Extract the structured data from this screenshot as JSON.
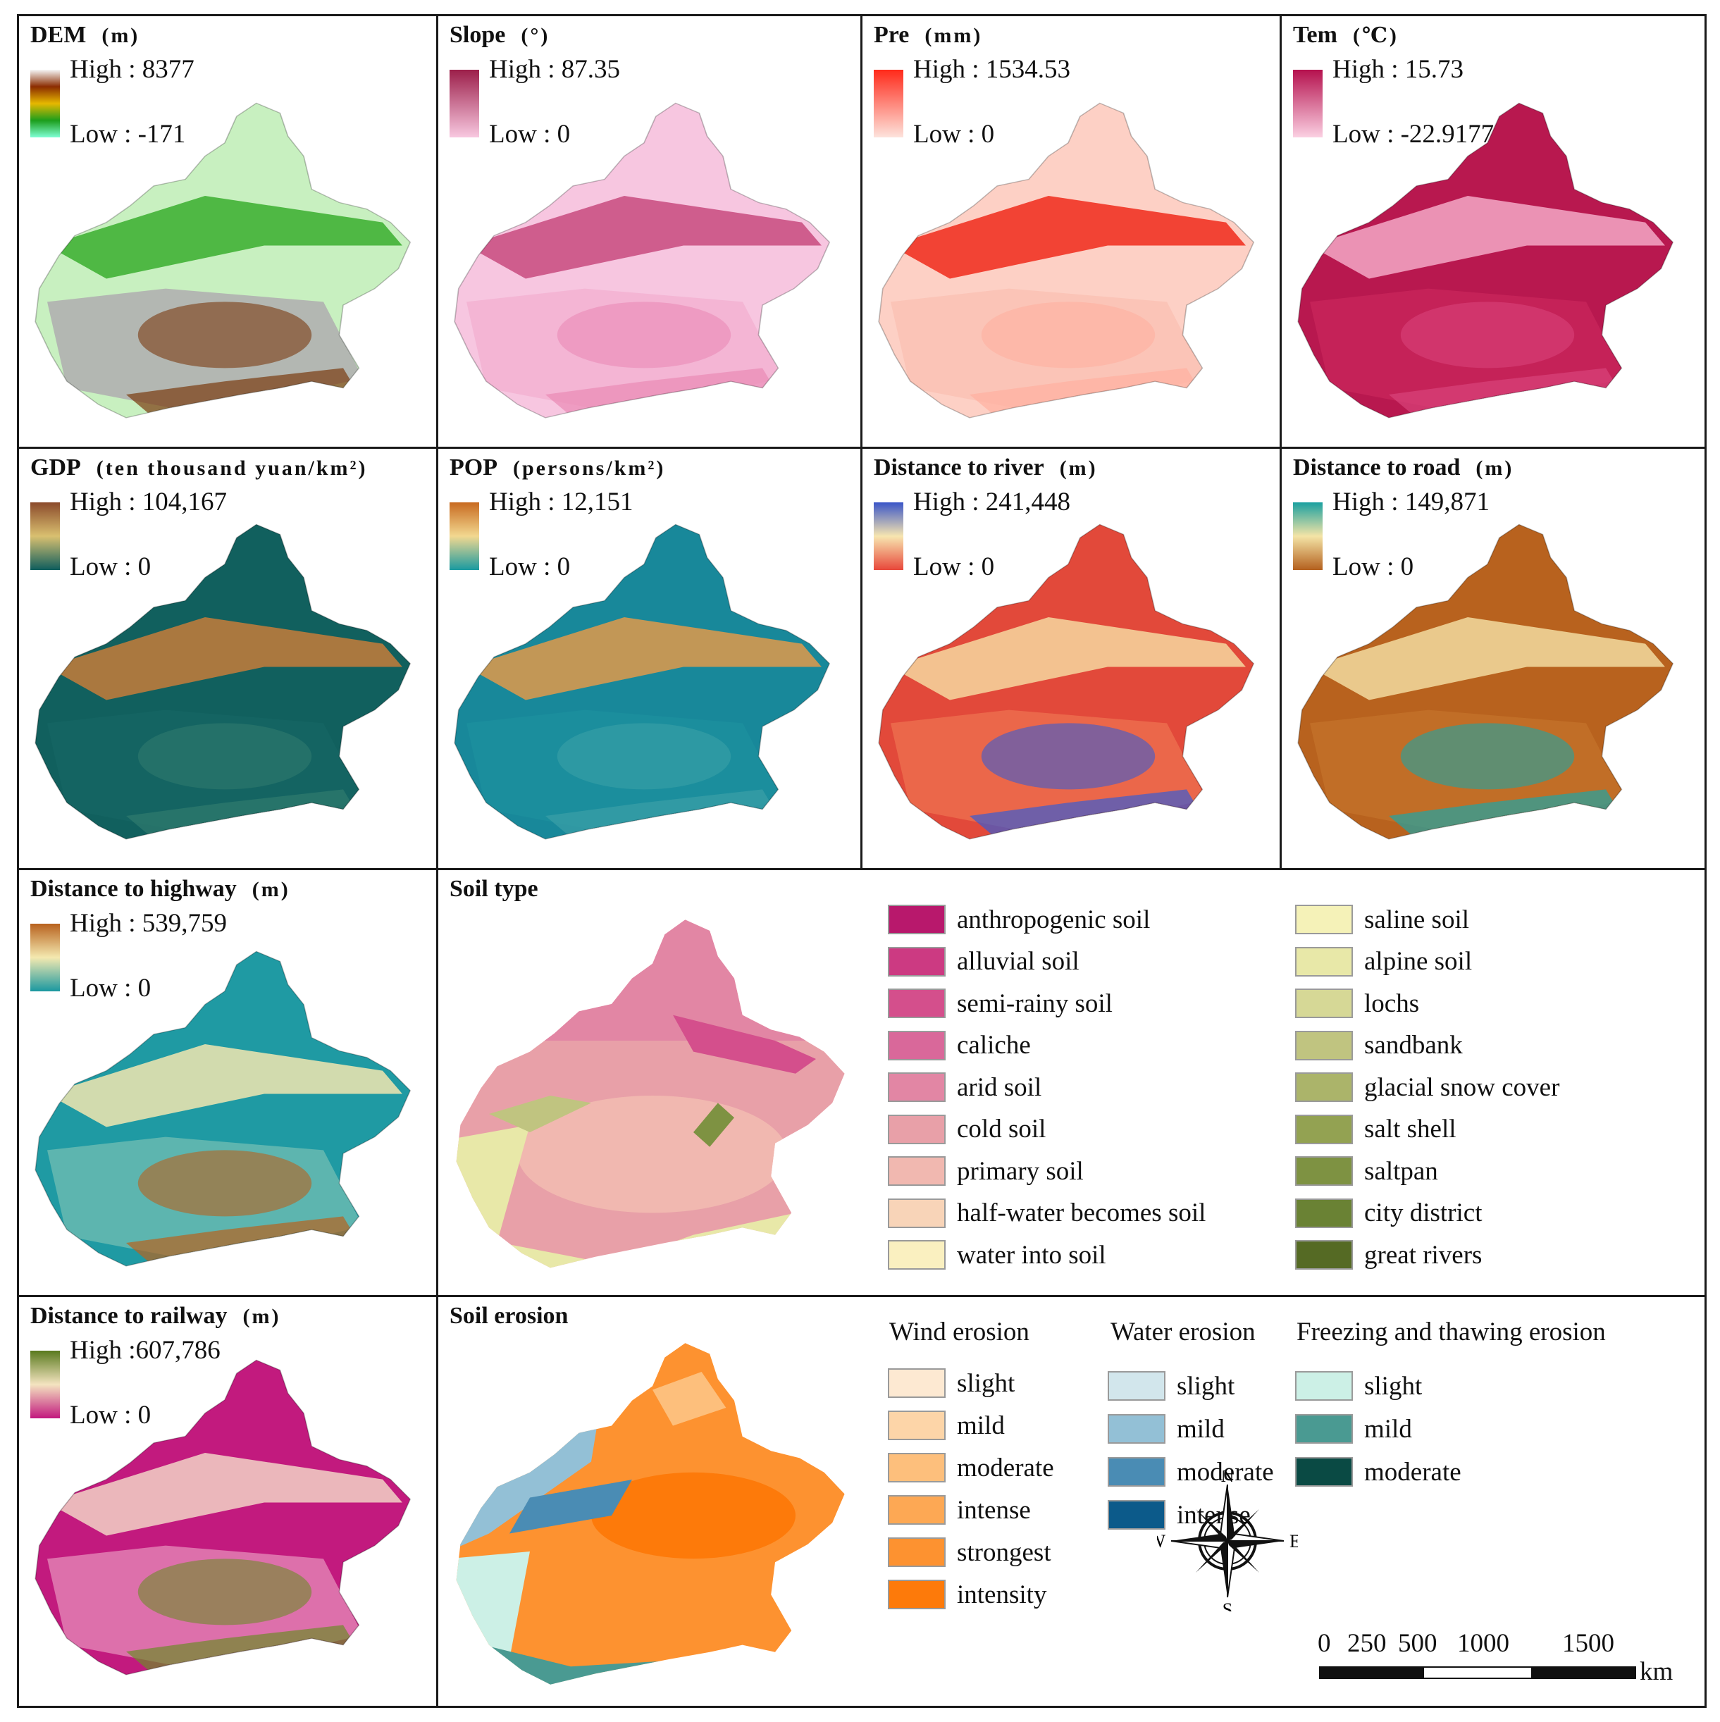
{
  "panels": [
    {
      "id": "dem",
      "title": "DEM",
      "unit": "(m)",
      "high": "High : 8377",
      "low": "Low : -171",
      "ramp": [
        "#f5f5f5",
        "#8b2c00",
        "#e6b800",
        "#1c9e1c",
        "#7fffd4"
      ],
      "fill": [
        "#c8f0c0",
        "#3aae2e",
        "#7a3a10",
        "#b0b0b0"
      ]
    },
    {
      "id": "slope",
      "title": "Slope",
      "unit": "(°)",
      "high": "High : 87.35",
      "low": "Low : 0",
      "ramp": [
        "#9c1f4a",
        "#f8c8e0"
      ],
      "fill": [
        "#f7c6e0",
        "#c84a7e",
        "#e98ab5",
        "#f3b3d3"
      ]
    },
    {
      "id": "pre",
      "title": "Pre",
      "unit": "(mm)",
      "high": "High : 1534.53",
      "low": "Low : 0",
      "ramp": [
        "#ff2a1a",
        "#fde3dc"
      ],
      "fill": [
        "#fdd0c5",
        "#f02a1a",
        "#ffb0a0",
        "#fbc2b5"
      ]
    },
    {
      "id": "tem",
      "title": "Tem",
      "unit": "(℃)",
      "high": "High : 15.73",
      "low": "Low : -22.9177",
      "ramp": [
        "#b5114e",
        "#fbd0e2"
      ],
      "fill": [
        "#b8184f",
        "#f3a8c6",
        "#d8437a",
        "#c62359"
      ]
    },
    {
      "id": "gdp",
      "title": "GDP",
      "unit": "(ten thousand yuan/km²)",
      "high": "High : 104,167",
      "low": "Low : 0",
      "ramp": [
        "#8b4a2b",
        "#d9c070",
        "#0e5d5d"
      ],
      "fill": [
        "#11605e",
        "#c67d3a",
        "#2f7a6e",
        "#156563"
      ]
    },
    {
      "id": "pop",
      "title": "POP",
      "unit": "(persons/km²)",
      "high": "High : 12,151",
      "low": "Low : 0",
      "ramp": [
        "#c86a20",
        "#f2d890",
        "#1a9aa0"
      ],
      "fill": [
        "#18889a",
        "#e09a4a",
        "#3aa0a6",
        "#1c8f9d"
      ]
    },
    {
      "id": "river",
      "title": "Distance to river",
      "unit": "(m)",
      "high": "High : 241,448",
      "low": "Low : 0",
      "ramp": [
        "#3a56c8",
        "#f7e6b0",
        "#e8473a"
      ],
      "fill": [
        "#e2493a",
        "#f6d7a0",
        "#3a5cd0",
        "#ec6a4c"
      ]
    },
    {
      "id": "road",
      "title": "Distance to road",
      "unit": "(m)",
      "high": "High : 149,871",
      "low": "Low : 0",
      "ramp": [
        "#1aa0a0",
        "#f4e4a6",
        "#b4601e"
      ],
      "fill": [
        "#b8621e",
        "#f2dca0",
        "#20a4a4",
        "#c27028"
      ]
    },
    {
      "id": "highway",
      "title": "Distance to highway",
      "unit": "(m)",
      "high": "High : 539,759",
      "low": "Low : 0",
      "ramp": [
        "#b8621e",
        "#f4e9b0",
        "#1a98a0"
      ],
      "fill": [
        "#1f9aa3",
        "#f2e6b0",
        "#b8621e",
        "#64b8b0"
      ]
    },
    {
      "id": "railway",
      "title": "Distance to railway",
      "unit": "(m)",
      "high": "High :607,786",
      "low": "Low : 0",
      "ramp": [
        "#5a7a1e",
        "#f4e4c0",
        "#c2187e"
      ],
      "fill": [
        "#c21a7e",
        "#f2d4c6",
        "#6e8a2a",
        "#e07ab0"
      ]
    }
  ],
  "soil_type": {
    "title": "Soil type",
    "items": [
      {
        "label": "anthropogenic soil",
        "color": "#b8186c"
      },
      {
        "label": "alluvial soil",
        "color": "#cc3a82"
      },
      {
        "label": "semi-rainy soil",
        "color": "#d44f8c"
      },
      {
        "label": "caliche",
        "color": "#d9689a"
      },
      {
        "label": "arid soil",
        "color": "#e286a4"
      },
      {
        "label": "cold soil",
        "color": "#e8a0a8"
      },
      {
        "label": "primary soil",
        "color": "#f1b8b0"
      },
      {
        "label": "half-water becomes soil",
        "color": "#f8d4b8"
      },
      {
        "label": "water into soil",
        "color": "#faf0c0"
      },
      {
        "label": "saline soil",
        "color": "#f5f2b8"
      },
      {
        "label": "alpine soil",
        "color": "#e8e8a8"
      },
      {
        "label": "lochs",
        "color": "#d6d896"
      },
      {
        "label": "sandbank",
        "color": "#c0c480"
      },
      {
        "label": "glacial snow cover",
        "color": "#abb46a"
      },
      {
        "label": "salt shell",
        "color": "#93a252"
      },
      {
        "label": "saltpan",
        "color": "#7e9242"
      },
      {
        "label": "city district",
        "color": "#6a8234"
      },
      {
        "label": "great rivers",
        "color": "#556a24"
      }
    ]
  },
  "soil_erosion": {
    "title": "Soil erosion",
    "groups": [
      {
        "title": "Wind erosion",
        "items": [
          {
            "label": "slight",
            "color": "#fde9d2"
          },
          {
            "label": "mild",
            "color": "#fdd5a8"
          },
          {
            "label": "moderate",
            "color": "#fdbf7c"
          },
          {
            "label": "intense",
            "color": "#fda854"
          },
          {
            "label": "strongest",
            "color": "#fd9230"
          },
          {
            "label": "intensity",
            "color": "#fd7a0a"
          }
        ]
      },
      {
        "title": "Water erosion",
        "items": [
          {
            "label": "slight",
            "color": "#d2e6ec"
          },
          {
            "label": "mild",
            "color": "#93c0d6"
          },
          {
            "label": "moderate",
            "color": "#4a8cb4"
          },
          {
            "label": "intense",
            "color": "#0c5a8a"
          }
        ]
      },
      {
        "title": "Freezing and thawing erosion",
        "items": [
          {
            "label": "slight",
            "color": "#ccf0e6"
          },
          {
            "label": "mild",
            "color": "#4a9a92"
          },
          {
            "label": "moderate",
            "color": "#0a4a44"
          }
        ]
      }
    ]
  },
  "compass": {
    "n": "N",
    "s": "S",
    "e": "E",
    "w": "W"
  },
  "scale_bar": {
    "ticks": [
      "0",
      "250",
      "500",
      "1000",
      "1500"
    ],
    "unit": "km"
  }
}
